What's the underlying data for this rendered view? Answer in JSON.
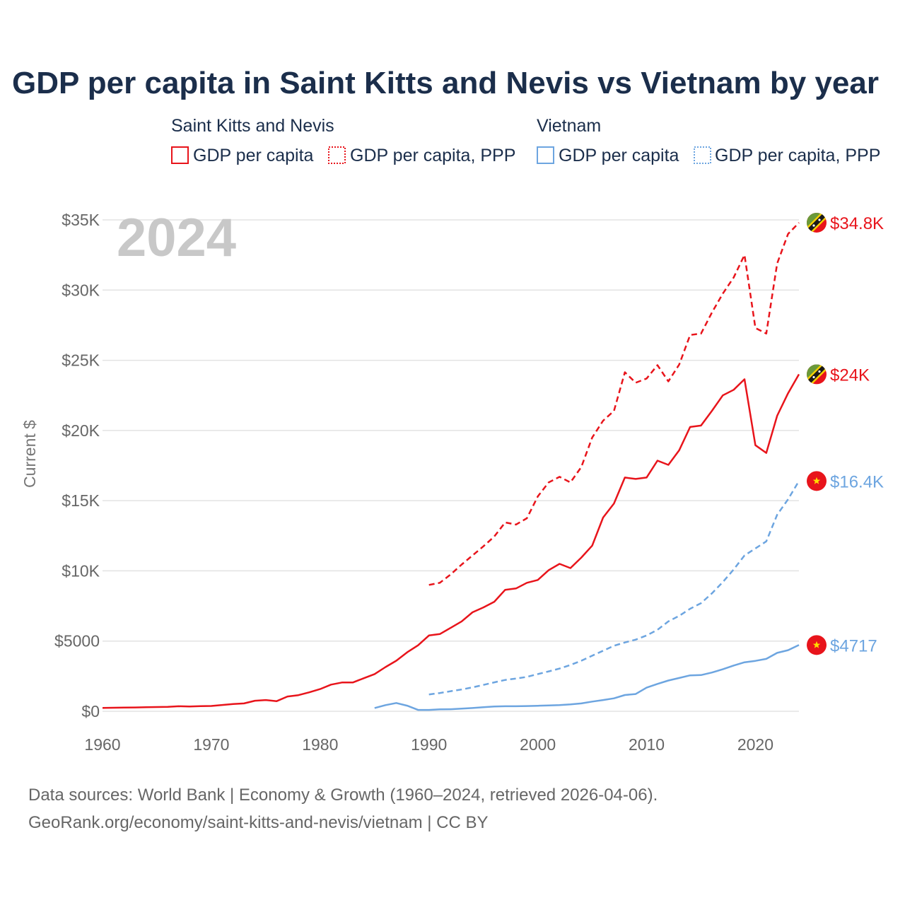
{
  "chart_data": {
    "type": "line",
    "title": "GDP per capita in Saint Kitts and Nevis vs Vietnam by year",
    "ylabel": "Current $",
    "xlabel": "",
    "xlim": [
      1960,
      2024
    ],
    "ylim": [
      0,
      35000
    ],
    "x_ticks": [
      "1960",
      "1970",
      "1980",
      "1990",
      "2000",
      "2010",
      "2020"
    ],
    "y_ticks": [
      "$0",
      "$5000",
      "$10K",
      "$15K",
      "$20K",
      "$25K",
      "$30K",
      "$35K"
    ],
    "year_label": "2024",
    "legend_groups": [
      {
        "name": "Saint Kitts and Nevis",
        "items": [
          "GDP per capita",
          "GDP per capita, PPP"
        ]
      },
      {
        "name": "Vietnam",
        "items": [
          "GDP per capita",
          "GDP per capita, PPP"
        ]
      }
    ],
    "series": [
      {
        "name": "Saint Kitts and Nevis — GDP per capita",
        "color": "#e8141b",
        "dash": "solid",
        "end_label": "$24K",
        "x": [
          1960,
          1961,
          1962,
          1963,
          1964,
          1965,
          1966,
          1967,
          1968,
          1969,
          1970,
          1971,
          1972,
          1973,
          1974,
          1975,
          1976,
          1977,
          1978,
          1979,
          1980,
          1981,
          1982,
          1983,
          1984,
          1985,
          1986,
          1987,
          1988,
          1989,
          1990,
          1991,
          1992,
          1993,
          1994,
          1995,
          1996,
          1997,
          1998,
          1999,
          2000,
          2001,
          2002,
          2003,
          2004,
          2005,
          2006,
          2007,
          2008,
          2009,
          2010,
          2011,
          2012,
          2013,
          2014,
          2015,
          2016,
          2017,
          2018,
          2019,
          2020,
          2021,
          2022,
          2023,
          2024
        ],
        "y": [
          240,
          250,
          260,
          270,
          285,
          300,
          310,
          360,
          340,
          370,
          380,
          450,
          520,
          560,
          750,
          800,
          720,
          1050,
          1150,
          1350,
          1580,
          1900,
          2050,
          2050,
          2350,
          2650,
          3150,
          3600,
          4200,
          4700,
          5400,
          5500,
          5950,
          6400,
          7050,
          7400,
          7800,
          8650,
          8750,
          9150,
          9350,
          10050,
          10500,
          10200,
          10950,
          11800,
          13800,
          14800,
          16650,
          16550,
          16650,
          17850,
          17550,
          18600,
          20250,
          20350,
          21400,
          22500,
          22900,
          23650,
          18950,
          18400,
          21050,
          22650,
          24000
        ]
      },
      {
        "name": "Saint Kitts and Nevis — GDP per capita, PPP",
        "color": "#e8141b",
        "dash": "dashed",
        "end_label": "$34.8K",
        "x": [
          1990,
          1991,
          1992,
          1993,
          1994,
          1995,
          1996,
          1997,
          1998,
          1999,
          2000,
          2001,
          2002,
          2003,
          2004,
          2005,
          2006,
          2007,
          2008,
          2009,
          2010,
          2011,
          2012,
          2013,
          2014,
          2015,
          2016,
          2017,
          2018,
          2019,
          2020,
          2021,
          2022,
          2023,
          2024
        ],
        "y": [
          9000,
          9150,
          9750,
          10450,
          11100,
          11750,
          12450,
          13450,
          13300,
          13750,
          15300,
          16300,
          16700,
          16300,
          17400,
          19500,
          20700,
          21400,
          24150,
          23400,
          23700,
          24650,
          23500,
          24700,
          26800,
          26900,
          28400,
          29750,
          30900,
          32500,
          27300,
          26900,
          31900,
          34000,
          34800
        ]
      },
      {
        "name": "Vietnam — GDP per capita",
        "color": "#6da5e0",
        "dash": "solid",
        "end_label": "$4717",
        "x": [
          1985,
          1986,
          1987,
          1988,
          1989,
          1990,
          1991,
          1992,
          1993,
          1994,
          1995,
          1996,
          1997,
          1998,
          1999,
          2000,
          2001,
          2002,
          2003,
          2004,
          2005,
          2006,
          2007,
          2008,
          2009,
          2010,
          2011,
          2012,
          2013,
          2014,
          2015,
          2016,
          2017,
          2018,
          2019,
          2020,
          2021,
          2022,
          2023,
          2024
        ],
        "y": [
          230,
          440,
          590,
          400,
          95,
          95,
          140,
          145,
          185,
          230,
          290,
          340,
          360,
          360,
          375,
          395,
          415,
          440,
          490,
          560,
          690,
          800,
          920,
          1160,
          1230,
          1680,
          1950,
          2190,
          2370,
          2560,
          2580,
          2760,
          2990,
          3260,
          3490,
          3590,
          3730,
          4160,
          4350,
          4717
        ]
      },
      {
        "name": "Vietnam — GDP per capita, PPP",
        "color": "#6da5e0",
        "dash": "dashed",
        "end_label": "$16.4K",
        "x": [
          1990,
          1991,
          1992,
          1993,
          1994,
          1995,
          1996,
          1997,
          1998,
          1999,
          2000,
          2001,
          2002,
          2003,
          2004,
          2005,
          2006,
          2007,
          2008,
          2009,
          2010,
          2011,
          2012,
          2013,
          2014,
          2015,
          2016,
          2017,
          2018,
          2019,
          2020,
          2021,
          2022,
          2023,
          2024
        ],
        "y": [
          1200,
          1300,
          1430,
          1550,
          1700,
          1880,
          2060,
          2230,
          2330,
          2450,
          2650,
          2840,
          3040,
          3300,
          3600,
          3960,
          4310,
          4670,
          4900,
          5100,
          5400,
          5800,
          6400,
          6800,
          7300,
          7700,
          8400,
          9200,
          10100,
          11100,
          11600,
          12100,
          14000,
          15100,
          16400
        ]
      }
    ]
  },
  "colors": {
    "saint_kitts": "#e8141b",
    "vietnam": "#6da5e0",
    "title": "#1b2e4b"
  },
  "footer": {
    "line1": "Data sources: World Bank | Economy & Growth (1960–2024, retrieved 2026-04-06).",
    "line2": "GeoRank.org/economy/saint-kitts-and-nevis/vietnam | CC BY"
  }
}
